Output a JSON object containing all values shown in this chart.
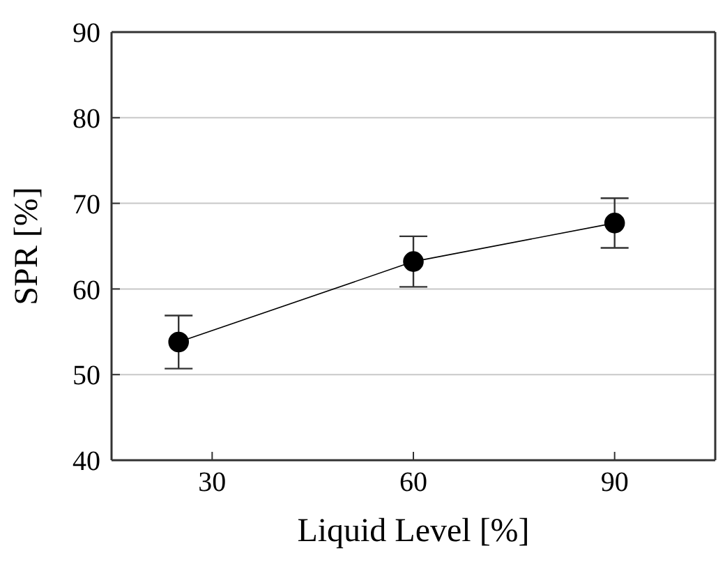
{
  "chart_data": {
    "type": "line",
    "xlabel": "Liquid Level [%]",
    "ylabel": "SPR [%]",
    "x": [
      25,
      60,
      90
    ],
    "series": [
      {
        "color": "#000000",
        "values": [
          53.8,
          63.2,
          67.7
        ],
        "errors": [
          3.1,
          2.95,
          2.9
        ]
      }
    ],
    "xlim": [
      15,
      105
    ],
    "xticks": [
      30,
      60,
      90
    ],
    "ylim": [
      40,
      90
    ],
    "yticks": [
      40,
      50,
      60,
      70,
      80,
      90
    ],
    "grid": "y",
    "marker": "circle",
    "line_style": "solid"
  }
}
